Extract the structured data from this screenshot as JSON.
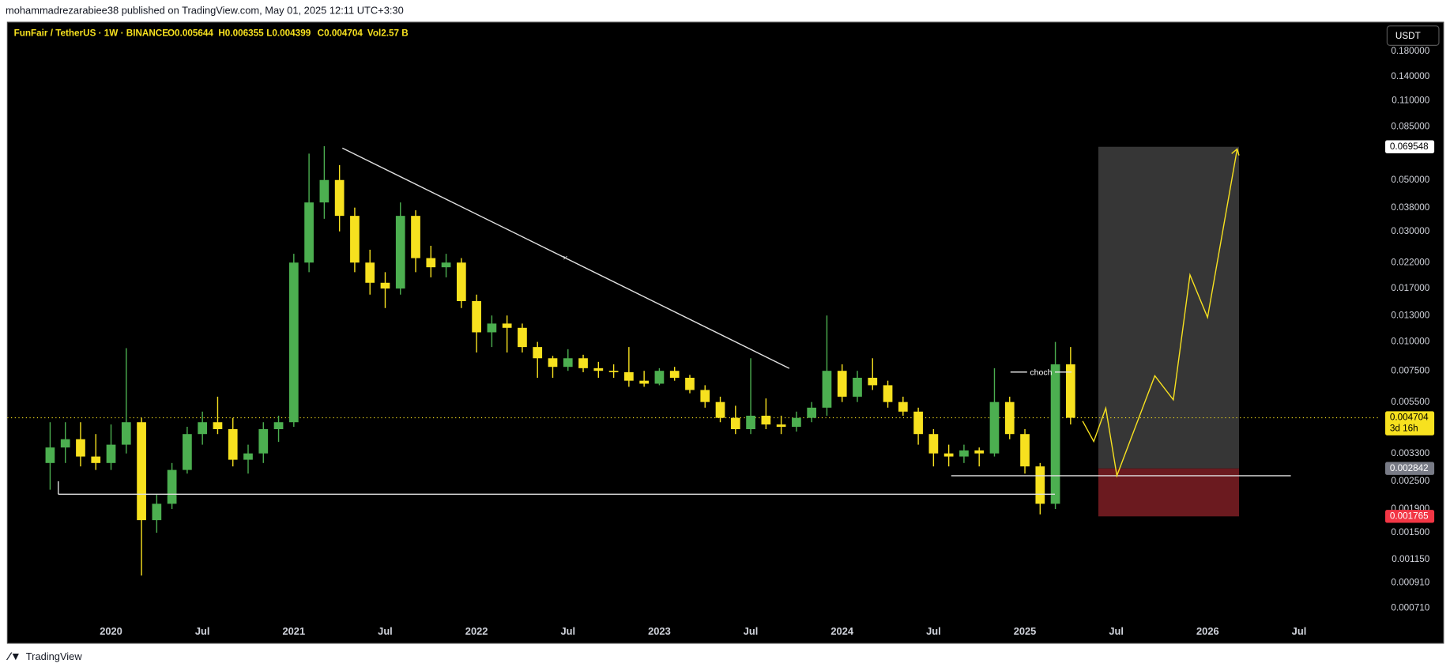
{
  "page": {
    "published": "mohammadrezarabiee38 published on TradingView.com, May 01, 2025 12:11 UTC+3:30",
    "brand": "TradingView"
  },
  "chart_data": {
    "type": "candlestick",
    "symbol": "FunFair / TetherUS · 1W · BINANCE",
    "ohlc_readout": [
      "O0.005644",
      "H0.006355",
      "L0.004399",
      "C0.004704",
      "Vol2.57 B"
    ],
    "currency": "USDT",
    "annotation": "choch",
    "log_scale": true,
    "grid": false,
    "up_color": "#4caf50",
    "down_color": "#f7e11f",
    "x": [
      "2019-09",
      "2019-10",
      "2019-11",
      "2019-12",
      "2020-01",
      "2020-02",
      "2020-03",
      "2020-04",
      "2020-05",
      "2020-06",
      "2020-07",
      "2020-08",
      "2020-09",
      "2020-10",
      "2020-11",
      "2020-12",
      "2021-01",
      "2021-02",
      "2021-03",
      "2021-04",
      "2021-05",
      "2021-06",
      "2021-07",
      "2021-08",
      "2021-09",
      "2021-10",
      "2021-11",
      "2021-12",
      "2022-01",
      "2022-02",
      "2022-03",
      "2022-04",
      "2022-05",
      "2022-06",
      "2022-07",
      "2022-08",
      "2022-09",
      "2022-10",
      "2022-11",
      "2022-12",
      "2023-01",
      "2023-02",
      "2023-03",
      "2023-04",
      "2023-05",
      "2023-06",
      "2023-07",
      "2023-08",
      "2023-09",
      "2023-10",
      "2023-11",
      "2023-12",
      "2024-01",
      "2024-02",
      "2024-03",
      "2024-04",
      "2024-05",
      "2024-06",
      "2024-07",
      "2024-08",
      "2024-09",
      "2024-10",
      "2024-11",
      "2024-12",
      "2025-01",
      "2025-02",
      "2025-03",
      "2025-04"
    ],
    "open": [
      0.003,
      0.0035,
      0.0038,
      0.0032,
      0.003,
      0.0036,
      0.0045,
      0.0017,
      0.002,
      0.0028,
      0.004,
      0.0045,
      0.0042,
      0.0031,
      0.0033,
      0.0042,
      0.0045,
      0.022,
      0.04,
      0.05,
      0.035,
      0.022,
      0.018,
      0.017,
      0.035,
      0.023,
      0.021,
      0.022,
      0.015,
      0.011,
      0.012,
      0.0115,
      0.0095,
      0.0085,
      0.0078,
      0.0085,
      0.0077,
      0.0075,
      0.0074,
      0.0068,
      0.0066,
      0.0075,
      0.007,
      0.0062,
      0.0055,
      0.0047,
      0.0042,
      0.0048,
      0.0044,
      0.0043,
      0.0047,
      0.0052,
      0.0075,
      0.0058,
      0.007,
      0.0065,
      0.0055,
      0.005,
      0.004,
      0.0033,
      0.0032,
      0.0034,
      0.0033,
      0.0055,
      0.004,
      0.0029,
      0.002,
      0.008
    ],
    "high": [
      0.0045,
      0.0045,
      0.0045,
      0.004,
      0.0044,
      0.0094,
      0.0047,
      0.0022,
      0.003,
      0.0043,
      0.005,
      0.0058,
      0.0047,
      0.0036,
      0.0045,
      0.0048,
      0.024,
      0.065,
      0.07,
      0.058,
      0.038,
      0.025,
      0.02,
      0.04,
      0.037,
      0.026,
      0.024,
      0.023,
      0.016,
      0.013,
      0.013,
      0.012,
      0.01,
      0.0087,
      0.0093,
      0.0088,
      0.0082,
      0.008,
      0.0095,
      0.0075,
      0.0077,
      0.0078,
      0.0072,
      0.0065,
      0.0058,
      0.0053,
      0.0085,
      0.0057,
      0.0048,
      0.005,
      0.0055,
      0.013,
      0.008,
      0.0075,
      0.0085,
      0.0068,
      0.0058,
      0.0052,
      0.0042,
      0.0036,
      0.0036,
      0.0035,
      0.0077,
      0.0058,
      0.0042,
      0.003,
      0.01,
      0.0095
    ],
    "low": [
      0.0023,
      0.003,
      0.0029,
      0.0028,
      0.0028,
      0.0033,
      0.00098,
      0.0015,
      0.0019,
      0.0027,
      0.0036,
      0.004,
      0.0029,
      0.0027,
      0.003,
      0.0037,
      0.0043,
      0.02,
      0.034,
      0.03,
      0.02,
      0.016,
      0.014,
      0.016,
      0.02,
      0.019,
      0.019,
      0.014,
      0.009,
      0.0095,
      0.009,
      0.009,
      0.007,
      0.007,
      0.0075,
      0.0074,
      0.007,
      0.007,
      0.0064,
      0.0064,
      0.0065,
      0.0068,
      0.006,
      0.0052,
      0.0045,
      0.004,
      0.004,
      0.0042,
      0.004,
      0.0041,
      0.0045,
      0.0048,
      0.0055,
      0.0055,
      0.0062,
      0.0052,
      0.0048,
      0.0036,
      0.0029,
      0.0029,
      0.003,
      0.0029,
      0.0032,
      0.0038,
      0.0027,
      0.0018,
      0.0019,
      0.0044
    ],
    "close": [
      0.0035,
      0.0038,
      0.0032,
      0.003,
      0.0036,
      0.0045,
      0.0017,
      0.002,
      0.0028,
      0.004,
      0.0045,
      0.0042,
      0.0031,
      0.0033,
      0.0042,
      0.0045,
      0.022,
      0.04,
      0.05,
      0.035,
      0.022,
      0.018,
      0.017,
      0.035,
      0.023,
      0.021,
      0.022,
      0.015,
      0.011,
      0.012,
      0.0115,
      0.0095,
      0.0085,
      0.0078,
      0.0085,
      0.0077,
      0.0075,
      0.0074,
      0.0068,
      0.0066,
      0.0075,
      0.007,
      0.0062,
      0.0055,
      0.0047,
      0.0042,
      0.0048,
      0.0044,
      0.0043,
      0.0047,
      0.0052,
      0.0075,
      0.0058,
      0.007,
      0.0065,
      0.0055,
      0.005,
      0.004,
      0.0033,
      0.0032,
      0.0034,
      0.0033,
      0.0055,
      0.004,
      0.0029,
      0.002,
      0.008,
      0.004704
    ],
    "xticks": [
      {
        "value": "2020-01",
        "label": "2020"
      },
      {
        "value": "2020-07",
        "label": "Jul"
      },
      {
        "value": "2021-01",
        "label": "2021"
      },
      {
        "value": "2021-07",
        "label": "Jul"
      },
      {
        "value": "2022-01",
        "label": "2022"
      },
      {
        "value": "2022-07",
        "label": "Jul"
      },
      {
        "value": "2023-01",
        "label": "2023"
      },
      {
        "value": "2023-07",
        "label": "Jul"
      },
      {
        "value": "2024-01",
        "label": "2024"
      },
      {
        "value": "2024-07",
        "label": "Jul"
      },
      {
        "value": "2025-01",
        "label": "2025"
      },
      {
        "value": "2025-07",
        "label": "Jul"
      },
      {
        "value": "2026-01",
        "label": "2026"
      },
      {
        "value": "2026-07",
        "label": "Jul"
      }
    ],
    "ylim": [
      0.0005,
      0.24
    ],
    "yticks": [
      {
        "value": 0.18,
        "label": "0.180000"
      },
      {
        "value": 0.14,
        "label": "0.140000"
      },
      {
        "value": 0.11,
        "label": "0.110000"
      },
      {
        "value": 0.085,
        "label": "0.085000"
      },
      {
        "value": 0.05,
        "label": "0.050000"
      },
      {
        "value": 0.038,
        "label": "0.038000"
      },
      {
        "value": 0.03,
        "label": "0.030000"
      },
      {
        "value": 0.022,
        "label": "0.022000"
      },
      {
        "value": 0.017,
        "label": "0.017000"
      },
      {
        "value": 0.013,
        "label": "0.013000"
      },
      {
        "value": 0.01,
        "label": "0.010000"
      },
      {
        "value": 0.0075,
        "label": "0.007500"
      },
      {
        "value": 0.0055,
        "label": "0.005500"
      },
      {
        "value": 0.0033,
        "label": "0.003300"
      },
      {
        "value": 0.0025,
        "label": "0.002500"
      },
      {
        "value": 0.0019,
        "label": "0.001900"
      },
      {
        "value": 0.0015,
        "label": "0.001500"
      },
      {
        "value": 0.00115,
        "label": "0.001150"
      },
      {
        "value": 0.00091,
        "label": "0.000910"
      },
      {
        "value": 0.00071,
        "label": "0.000710"
      }
    ],
    "markers": [
      {
        "value": 0.069548,
        "color": "#ffffff",
        "text_color": "#000000"
      },
      {
        "value": 0.004704,
        "color": "#f7e11f",
        "text_color": "#000000",
        "countdown": "3d 16h"
      },
      {
        "value": 0.002842,
        "color": "#787b86",
        "text_color": "#ffffff"
      },
      {
        "value": 0.001765,
        "color": "#f23645",
        "text_color": "#ffffff"
      }
    ]
  }
}
